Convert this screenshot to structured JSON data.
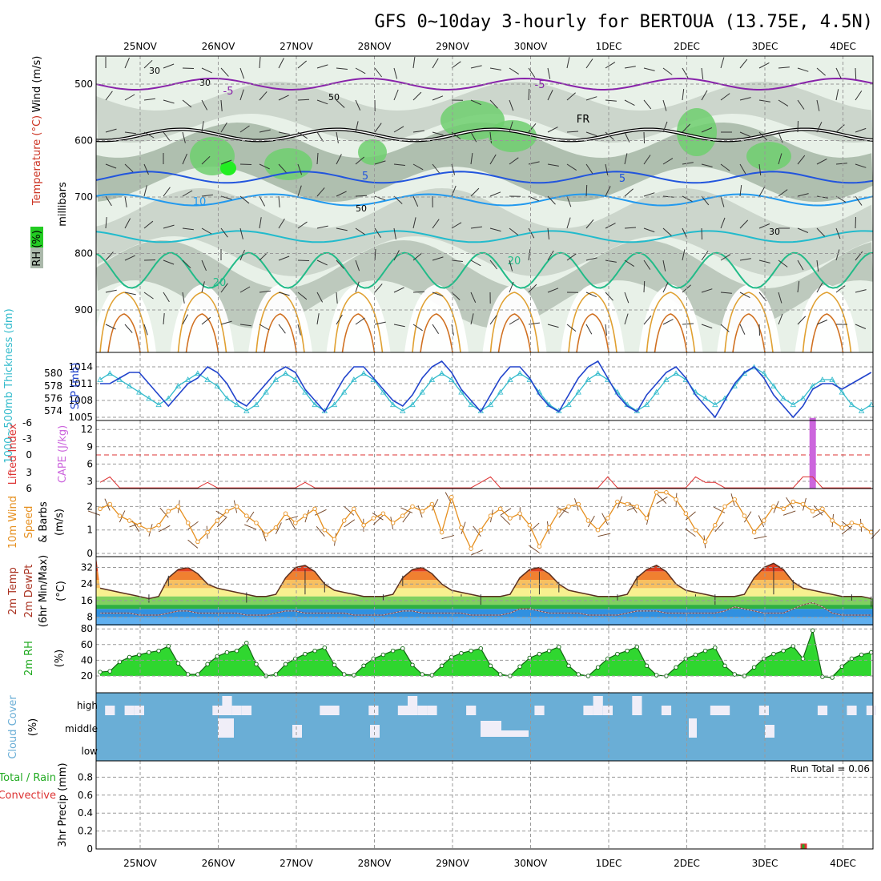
{
  "title": "GFS 0~10day 3-hourly for BERTOUA (13.75E, 4.5N)",
  "dates": [
    "25NOV",
    "26NOV",
    "27NOV",
    "28NOV",
    "29NOV",
    "30NOV",
    "1DEC",
    "2DEC",
    "3DEC",
    "4DEC"
  ],
  "colors": {
    "grid": "#999999",
    "sky": "#6aaed6",
    "temp_hot": "#d83020",
    "dew": "#8a4a4a",
    "rh_green": "#22aa22",
    "cape": "#cc66dd",
    "li": "#dd3333",
    "wind": "#e69020",
    "slp": "#2244cc",
    "thick": "#33bbcc"
  },
  "chart_data": [
    {
      "type": "contour",
      "panel": "upper-air",
      "ylabel": "millibars",
      "yticks": [
        500,
        600,
        700,
        800,
        900
      ],
      "ylim": [
        1000,
        450
      ],
      "legend_labels": [
        "Wind (m/s)",
        "Temperature (°C)",
        "RH (%)"
      ],
      "temperature_isotherms": [
        {
          "temp": -5,
          "pressure": 500
        },
        {
          "temp": 0,
          "label": "FR",
          "pressure": 590
        },
        {
          "temp": 5,
          "pressure": 665
        },
        {
          "temp": 10,
          "pressure": 705
        },
        {
          "temp": 15,
          "pressure": 770
        },
        {
          "temp": 20,
          "pressure": 830
        }
      ],
      "rh_labels": [
        "30",
        "50"
      ],
      "contour_labels": [
        "-5",
        "-5",
        "FR",
        "5",
        "5",
        "10",
        "20",
        "20"
      ]
    },
    {
      "type": "line",
      "panel": "pressure",
      "left_label": "1000~500mb Thickness (dm)",
      "right_label": "SLP (mb)",
      "left_ticks": [
        574,
        576,
        578,
        580
      ],
      "right_ticks": [
        1005,
        1008,
        1011,
        1014
      ],
      "slp": [
        1011,
        1011,
        1012,
        1013,
        1013,
        1011,
        1009,
        1007,
        1009,
        1011,
        1012,
        1014,
        1013,
        1011,
        1008,
        1007,
        1009,
        1011,
        1013,
        1014,
        1013,
        1010,
        1008,
        1006,
        1009,
        1012,
        1014,
        1014,
        1012,
        1010,
        1008,
        1007,
        1009,
        1012,
        1014,
        1015,
        1013,
        1010,
        1008,
        1006,
        1009,
        1012,
        1014,
        1014,
        1012,
        1009,
        1007,
        1006,
        1009,
        1012,
        1014,
        1015,
        1012,
        1009,
        1007,
        1006,
        1009,
        1011,
        1013,
        1014,
        1012,
        1009,
        1007,
        1005,
        1008,
        1011,
        1013,
        1014,
        1012,
        1009,
        1007,
        1005,
        1007,
        1010,
        1011,
        1011,
        1010,
        1011,
        1012,
        1013
      ],
      "thickness": [
        579,
        580,
        579,
        578,
        577,
        576,
        575,
        576,
        578,
        579,
        580,
        579,
        578,
        576,
        575,
        574,
        575,
        577,
        579,
        580,
        579,
        577,
        575,
        574,
        575,
        577,
        579,
        580,
        579,
        577,
        575,
        574,
        575,
        577,
        579,
        580,
        579,
        577,
        575,
        574,
        575,
        577,
        579,
        580,
        579,
        577,
        575,
        574,
        575,
        577,
        579,
        580,
        579,
        577,
        575,
        574,
        575,
        577,
        579,
        580,
        579,
        577,
        576,
        575,
        576,
        578,
        580,
        581,
        580,
        578,
        576,
        575,
        576,
        578,
        579,
        579,
        577,
        575,
        574,
        575
      ]
    },
    {
      "type": "bar",
      "panel": "instability",
      "left_label": "Lifted Index",
      "right_label": "CAPE (J/kg)",
      "li_ticks": [
        "6",
        "3",
        "0",
        "-3",
        "-6"
      ],
      "cape_ticks": [
        3,
        6,
        9,
        12
      ],
      "cape_bar": {
        "date": "3DEC",
        "value": 14
      },
      "lifted_index": [
        5,
        4,
        6,
        6,
        6,
        6,
        6,
        6,
        6,
        6,
        6,
        5,
        6,
        6,
        6,
        6,
        6,
        6,
        6,
        6,
        6,
        5,
        6,
        6,
        6,
        6,
        6,
        6,
        6,
        6,
        6,
        6,
        6,
        6,
        6,
        6,
        6,
        6,
        6,
        5,
        4,
        6,
        6,
        6,
        6,
        6,
        6,
        6,
        6,
        6,
        6,
        6,
        4,
        6,
        6,
        6,
        6,
        6,
        6,
        6,
        6,
        4,
        5,
        5,
        6,
        6,
        6,
        6,
        6,
        6,
        6,
        6,
        4,
        4,
        6,
        6,
        6,
        6,
        6,
        6
      ]
    },
    {
      "type": "line",
      "panel": "wind",
      "ylabel": "10m Wind Speed & Barbs (m/s)",
      "yticks": [
        0,
        1,
        2
      ],
      "speed": [
        1.9,
        2.1,
        1.6,
        1.4,
        1.2,
        1.0,
        1.2,
        1.8,
        2.0,
        1.3,
        0.5,
        0.9,
        1.4,
        1.8,
        2.0,
        1.6,
        1.3,
        0.8,
        1.1,
        1.7,
        1.3,
        1.6,
        1.9,
        1.0,
        0.6,
        1.4,
        1.9,
        1.2,
        1.5,
        1.7,
        1.3,
        1.6,
        2.0,
        1.8,
        2.1,
        0.9,
        2.4,
        1.1,
        0.2,
        1.0,
        1.6,
        1.9,
        1.5,
        1.7,
        1.2,
        0.3,
        1.1,
        1.8,
        2.0,
        2.1,
        1.4,
        1.0,
        1.5,
        2.2,
        2.1,
        2.0,
        1.5,
        2.6,
        2.6,
        2.3,
        1.7,
        1.0,
        0.5,
        1.2,
        2.0,
        2.3,
        1.6,
        0.9,
        1.4,
        2.0,
        1.9,
        2.2,
        2.1,
        1.8,
        1.9,
        1.4,
        1.1,
        1.3,
        1.2,
        0.9
      ]
    },
    {
      "type": "area",
      "panel": "temperature",
      "ylabel": "2m Temp / 2m DewPt (6hr Min/Max) (°C)",
      "yticks": [
        8,
        16,
        24,
        32
      ],
      "temp": [
        22,
        21,
        20,
        19,
        18,
        17,
        18,
        27,
        31,
        32,
        29,
        24,
        22,
        21,
        20,
        19,
        18,
        18,
        19,
        27,
        32,
        33,
        30,
        24,
        21,
        20,
        19,
        18,
        18,
        18,
        19,
        27,
        31,
        32,
        29,
        24,
        21,
        20,
        19,
        18,
        18,
        18,
        19,
        27,
        31,
        32,
        29,
        24,
        21,
        20,
        19,
        18,
        18,
        18,
        19,
        27,
        31,
        33,
        30,
        24,
        21,
        20,
        19,
        18,
        18,
        18,
        19,
        27,
        32,
        34,
        31,
        25,
        22,
        21,
        20,
        19,
        18,
        18,
        18,
        17
      ],
      "dewpoint": [
        10,
        10,
        10,
        10,
        9,
        9,
        9,
        10,
        11,
        11,
        10,
        10,
        10,
        10,
        10,
        9,
        9,
        9,
        10,
        11,
        11,
        10,
        10,
        10,
        10,
        10,
        9,
        9,
        9,
        9,
        10,
        11,
        11,
        10,
        10,
        10,
        10,
        10,
        9,
        9,
        9,
        9,
        10,
        12,
        12,
        11,
        10,
        10,
        10,
        10,
        9,
        9,
        9,
        9,
        10,
        11,
        11,
        11,
        10,
        10,
        10,
        10,
        10,
        10,
        11,
        13,
        12,
        11,
        10,
        10,
        10,
        12,
        14,
        15,
        13,
        10,
        9,
        9,
        9,
        9
      ]
    },
    {
      "type": "area",
      "panel": "humidity",
      "ylabel": "2m RH (%)",
      "yticks": [
        20,
        40,
        60,
        80
      ],
      "rh": [
        25,
        26,
        38,
        44,
        47,
        50,
        52,
        58,
        36,
        22,
        22,
        35,
        45,
        50,
        52,
        62,
        35,
        20,
        22,
        35,
        42,
        48,
        52,
        56,
        34,
        22,
        21,
        33,
        42,
        47,
        52,
        55,
        34,
        22,
        21,
        33,
        44,
        49,
        52,
        55,
        33,
        22,
        20,
        32,
        43,
        48,
        52,
        57,
        33,
        22,
        20,
        31,
        42,
        48,
        52,
        57,
        33,
        21,
        20,
        31,
        42,
        47,
        52,
        56,
        33,
        22,
        20,
        31,
        42,
        48,
        52,
        58,
        42,
        78,
        19,
        18,
        32,
        42,
        47,
        50
      ]
    },
    {
      "type": "bar",
      "panel": "cloud",
      "ylabel": "Cloud Cover (%)",
      "level_labels": [
        "high",
        "middle",
        "low"
      ]
    },
    {
      "type": "bar",
      "panel": "precip",
      "ylabel": "3hr Precip (mm)",
      "left_labels": [
        "Total / Rain",
        "Convective"
      ],
      "yticks": [
        0,
        0.2,
        0.4,
        0.6,
        0.8
      ],
      "run_total": "Run Total = 0.06",
      "precip_bar": {
        "date": "3DEC",
        "value": 0.06
      }
    }
  ]
}
